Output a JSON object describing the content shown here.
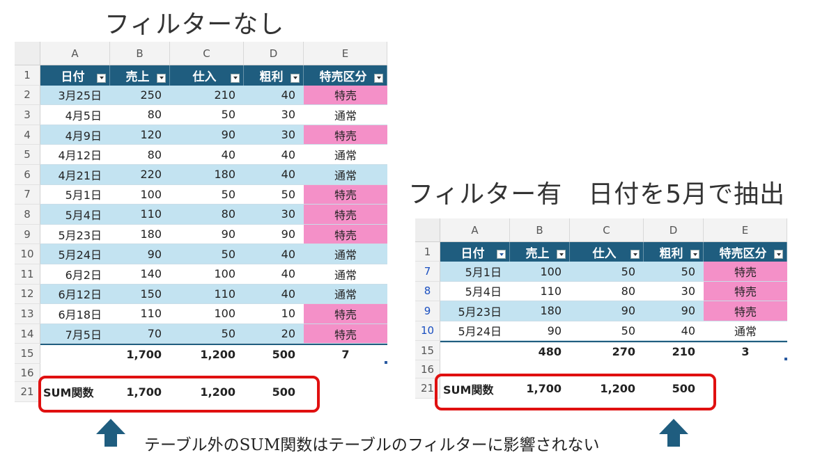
{
  "left": {
    "title": "フィルターなし",
    "columns": [
      "A",
      "B",
      "C",
      "D",
      "E"
    ],
    "headers": [
      "日付",
      "売上",
      "仕入",
      "粗利",
      "特売区分"
    ],
    "rows": [
      {
        "rn": "2",
        "date": "3月25日",
        "sales": "250",
        "cost": "210",
        "profit": "40",
        "kubun": "特売",
        "band": true,
        "pink": true
      },
      {
        "rn": "3",
        "date": "4月5日",
        "sales": "80",
        "cost": "50",
        "profit": "30",
        "kubun": "通常",
        "band": false,
        "pink": false
      },
      {
        "rn": "4",
        "date": "4月9日",
        "sales": "120",
        "cost": "90",
        "profit": "30",
        "kubun": "特売",
        "band": true,
        "pink": true
      },
      {
        "rn": "5",
        "date": "4月12日",
        "sales": "80",
        "cost": "40",
        "profit": "40",
        "kubun": "通常",
        "band": false,
        "pink": false
      },
      {
        "rn": "6",
        "date": "4月21日",
        "sales": "220",
        "cost": "180",
        "profit": "40",
        "kubun": "通常",
        "band": true,
        "pink": false
      },
      {
        "rn": "7",
        "date": "5月1日",
        "sales": "100",
        "cost": "50",
        "profit": "50",
        "kubun": "特売",
        "band": false,
        "pink": true
      },
      {
        "rn": "8",
        "date": "5月4日",
        "sales": "110",
        "cost": "80",
        "profit": "30",
        "kubun": "特売",
        "band": true,
        "pink": true
      },
      {
        "rn": "9",
        "date": "5月23日",
        "sales": "180",
        "cost": "90",
        "profit": "90",
        "kubun": "特売",
        "band": false,
        "pink": true
      },
      {
        "rn": "10",
        "date": "5月24日",
        "sales": "90",
        "cost": "50",
        "profit": "40",
        "kubun": "通常",
        "band": true,
        "pink": false
      },
      {
        "rn": "11",
        "date": "6月2日",
        "sales": "140",
        "cost": "100",
        "profit": "40",
        "kubun": "通常",
        "band": false,
        "pink": false
      },
      {
        "rn": "12",
        "date": "6月12日",
        "sales": "150",
        "cost": "110",
        "profit": "40",
        "kubun": "通常",
        "band": true,
        "pink": false
      },
      {
        "rn": "13",
        "date": "6月18日",
        "sales": "110",
        "cost": "100",
        "profit": "10",
        "kubun": "特売",
        "band": false,
        "pink": true
      },
      {
        "rn": "14",
        "date": "7月5日",
        "sales": "70",
        "cost": "50",
        "profit": "20",
        "kubun": "特売",
        "band": true,
        "pink": true
      }
    ],
    "header_row_num": "1",
    "total": {
      "rn": "15",
      "sales": "1,700",
      "cost": "1,200",
      "profit": "500",
      "kubun": "7"
    },
    "blank_rn": "16",
    "sum": {
      "rn": "21",
      "label": "SUM関数",
      "sales": "1,700",
      "cost": "1,200",
      "profit": "500"
    }
  },
  "right": {
    "title": "フィルター有　日付を5月で抽出",
    "columns": [
      "A",
      "B",
      "C",
      "D",
      "E"
    ],
    "headers": [
      "日付",
      "売上",
      "仕入",
      "粗利",
      "特売区分"
    ],
    "rows": [
      {
        "rn": "7",
        "date": "5月1日",
        "sales": "100",
        "cost": "50",
        "profit": "50",
        "kubun": "特売",
        "band": true,
        "pink": true
      },
      {
        "rn": "8",
        "date": "5月4日",
        "sales": "110",
        "cost": "80",
        "profit": "30",
        "kubun": "特売",
        "band": false,
        "pink": true
      },
      {
        "rn": "9",
        "date": "5月23日",
        "sales": "180",
        "cost": "90",
        "profit": "90",
        "kubun": "特売",
        "band": true,
        "pink": true
      },
      {
        "rn": "10",
        "date": "5月24日",
        "sales": "90",
        "cost": "50",
        "profit": "40",
        "kubun": "通常",
        "band": false,
        "pink": false
      }
    ],
    "header_row_num": "1",
    "total": {
      "rn": "15",
      "sales": "480",
      "cost": "270",
      "profit": "210",
      "kubun": "3"
    },
    "blank_rn": "16",
    "sum": {
      "rn": "21",
      "label": "SUM関数",
      "sales": "1,700",
      "cost": "1,200",
      "profit": "500"
    }
  },
  "caption": "テーブル外のSUM関数はテーブルのフィルターに影響されない",
  "colors": {
    "header": "#1f5d7f",
    "band": "#c3e3f1",
    "pink": "#f490c8",
    "red": "#e01010",
    "arrow": "#1f5d7f"
  },
  "icons": [
    "dropdown-icon",
    "filter-dropdown-icon",
    "up-arrow-icon"
  ]
}
